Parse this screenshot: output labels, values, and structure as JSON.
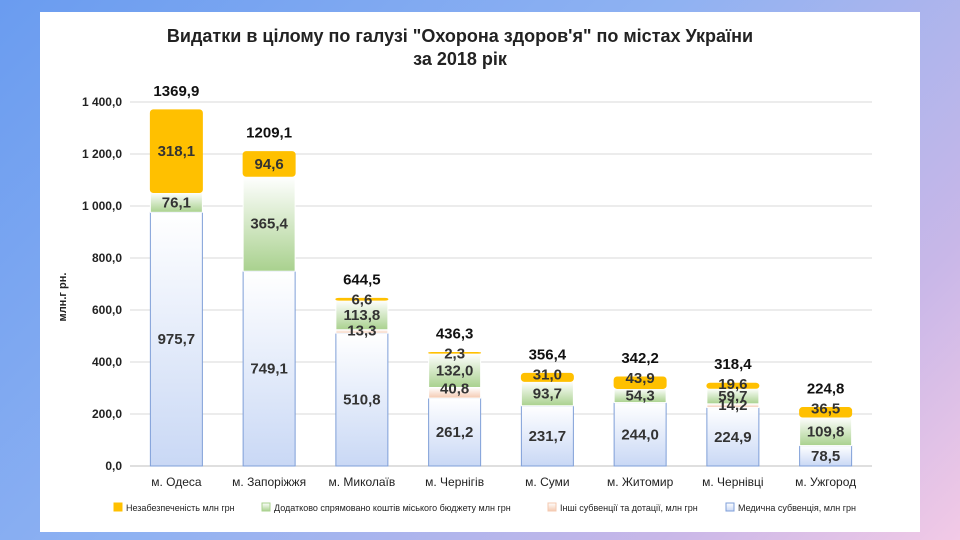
{
  "chart_data": {
    "type": "bar",
    "stacked": true,
    "title_line1": "Видатки в цілому по галузі \"Охорона здоров'я\" по містах України",
    "title_line2": "за 2018 рік",
    "ylabel": "млн.г рн.",
    "ylim": [
      0,
      1400
    ],
    "yticks": [
      0,
      200,
      400,
      600,
      800,
      1000,
      1200,
      1400
    ],
    "ytick_labels": [
      "0,0",
      "200,0",
      "400,0",
      "600,0",
      "800,0",
      "1 000,0",
      "1 200,0",
      "1 400,0"
    ],
    "grid": true,
    "legend_position": "bottom",
    "categories": [
      "м. Одеса",
      "м. Запоріжжя",
      "м. Миколаїв",
      "м. Чернігів",
      "м. Суми",
      "м. Житомир",
      "м. Чернівці",
      "м. Ужгород"
    ],
    "totals": [
      "1369,9",
      "1209,1",
      "644,5",
      "436,3",
      "356,4",
      "342,2",
      "318,4",
      "224,8"
    ],
    "series": [
      {
        "name": "Медична субвенція, млн грн",
        "color": "#c9d8f5",
        "values": [
          975.7,
          749.1,
          510.8,
          261.2,
          231.7,
          244.0,
          224.9,
          78.5
        ],
        "labels": [
          "975,7",
          "749,1",
          "510,8",
          "261,2",
          "231,7",
          "244,0",
          "224,9",
          "78,5"
        ]
      },
      {
        "name": "Інші субвенції та дотації, млн грн",
        "color": "#f4c9b0",
        "values": [
          0,
          0,
          13.3,
          40.8,
          0,
          0,
          14.2,
          0
        ],
        "labels": [
          "",
          "",
          "13,3",
          "40,8",
          "",
          "",
          "14,2",
          ""
        ]
      },
      {
        "name": "Додатково спрямовано коштів міського бюджету млн грн",
        "color": "#a9d18e",
        "values": [
          76.1,
          365.4,
          113.8,
          132.0,
          93.7,
          54.3,
          59.7,
          109.8
        ],
        "labels": [
          "76,1",
          "365,4",
          "113,8",
          "132,0",
          "93,7",
          "54,3",
          "59,7",
          "109,8"
        ]
      },
      {
        "name": "Незабезпеченість млн грн",
        "color": "#ffc000",
        "values": [
          318.1,
          94.6,
          6.6,
          2.3,
          31.0,
          43.9,
          19.6,
          36.5
        ],
        "labels": [
          "318,1",
          "94,6",
          "6,6",
          "2,3",
          "31,0",
          "43,9",
          "19,6",
          "36,5"
        ]
      }
    ],
    "legend_order": [
      3,
      2,
      1,
      0
    ]
  }
}
